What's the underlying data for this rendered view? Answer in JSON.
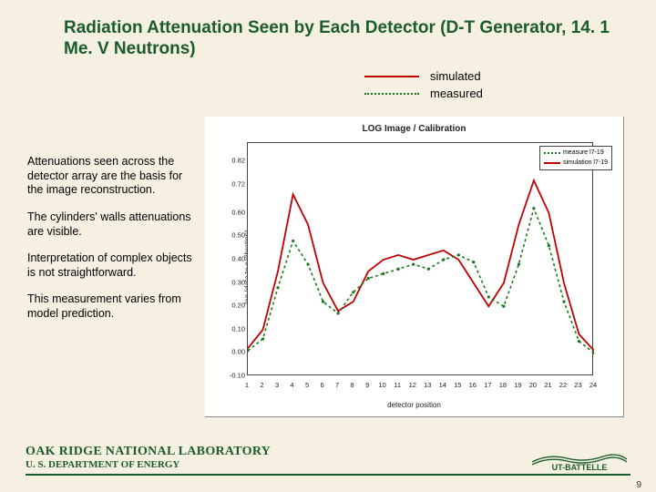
{
  "title": "Radiation Attenuation Seen by Each Detector (D-T Generator, 14. 1 Me. V Neutrons)",
  "legend_above": {
    "simulated": "simulated",
    "measured": "measured",
    "sim_color": "#c00000",
    "meas_color": "#1a7a1a"
  },
  "paragraphs": [
    "Attenuations seen across the detector array are the basis for the image reconstruction.",
    "The cylinders' walls attenuations are visible.",
    "Interpretation of complex objects is not straightforward.",
    "This measurement varies from model prediction."
  ],
  "chart": {
    "type": "line",
    "title": "LOG Image / Calibration",
    "xlabel": "detector position",
    "ylabel": "log (data to calibration)",
    "xlim": [
      1,
      24
    ],
    "ylim": [
      -0.1,
      0.9
    ],
    "ytick_labels": [
      "-0.10",
      "0.00",
      "0.10",
      "0.20",
      "0.30",
      "0.40",
      "0.50",
      "0.60",
      "0.72",
      "0.82"
    ],
    "ytick_values": [
      -0.1,
      0.0,
      0.1,
      0.2,
      0.3,
      0.4,
      0.5,
      0.6,
      0.72,
      0.82
    ],
    "x": [
      1,
      2,
      3,
      4,
      5,
      6,
      7,
      8,
      9,
      10,
      11,
      12,
      13,
      14,
      15,
      16,
      17,
      18,
      19,
      20,
      21,
      22,
      23,
      24
    ],
    "simulated": [
      0.02,
      0.1,
      0.35,
      0.68,
      0.55,
      0.3,
      0.18,
      0.22,
      0.35,
      0.4,
      0.42,
      0.4,
      0.42,
      0.44,
      0.4,
      0.3,
      0.2,
      0.3,
      0.55,
      0.74,
      0.6,
      0.3,
      0.08,
      0.01
    ],
    "measured": [
      0.01,
      0.06,
      0.28,
      0.48,
      0.38,
      0.22,
      0.17,
      0.26,
      0.32,
      0.34,
      0.36,
      0.38,
      0.36,
      0.4,
      0.42,
      0.39,
      0.24,
      0.2,
      0.38,
      0.62,
      0.46,
      0.22,
      0.05,
      0.0
    ],
    "sim_color": "#c00000",
    "meas_color": "#1a7a1a",
    "sim_width": 1.8,
    "meas_dash": "3,3",
    "background": "#ffffff",
    "legend_items": [
      {
        "label": "measure l7-19",
        "style": "meas"
      },
      {
        "label": "simulation l7-19",
        "style": "sim"
      }
    ]
  },
  "footer": {
    "lab": "OAK RIDGE NATIONAL LABORATORY",
    "doe": "U. S. DEPARTMENT OF ENERGY",
    "logo_text": "UT-BATTELLE",
    "logo_color": "#1a5c2f"
  },
  "page_number": "9"
}
